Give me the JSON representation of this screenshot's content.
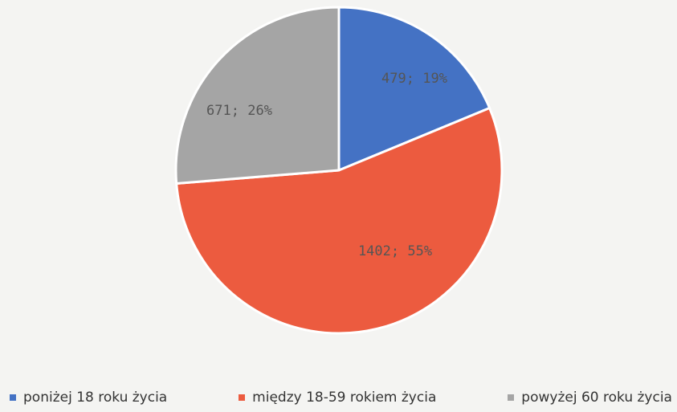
{
  "chart_data": {
    "type": "pie",
    "title": "",
    "slices": [
      {
        "label": "poniżej 18 roku życia",
        "value": 479,
        "percent": 19,
        "data_label": "479; 19%",
        "color": "#4472c4"
      },
      {
        "label": "między 18-59 rokiem życia",
        "value": 1402,
        "percent": 55,
        "data_label": "1402; 55%",
        "color": "#ec5b3f"
      },
      {
        "label": "powyżej 60 roku życia",
        "value": 671,
        "percent": 26,
        "data_label": "671; 26%",
        "color": "#a5a5a5"
      }
    ],
    "start_angle_deg": 0,
    "direction": "clockwise",
    "legend_position": "bottom",
    "data_label_color": "#555555"
  }
}
